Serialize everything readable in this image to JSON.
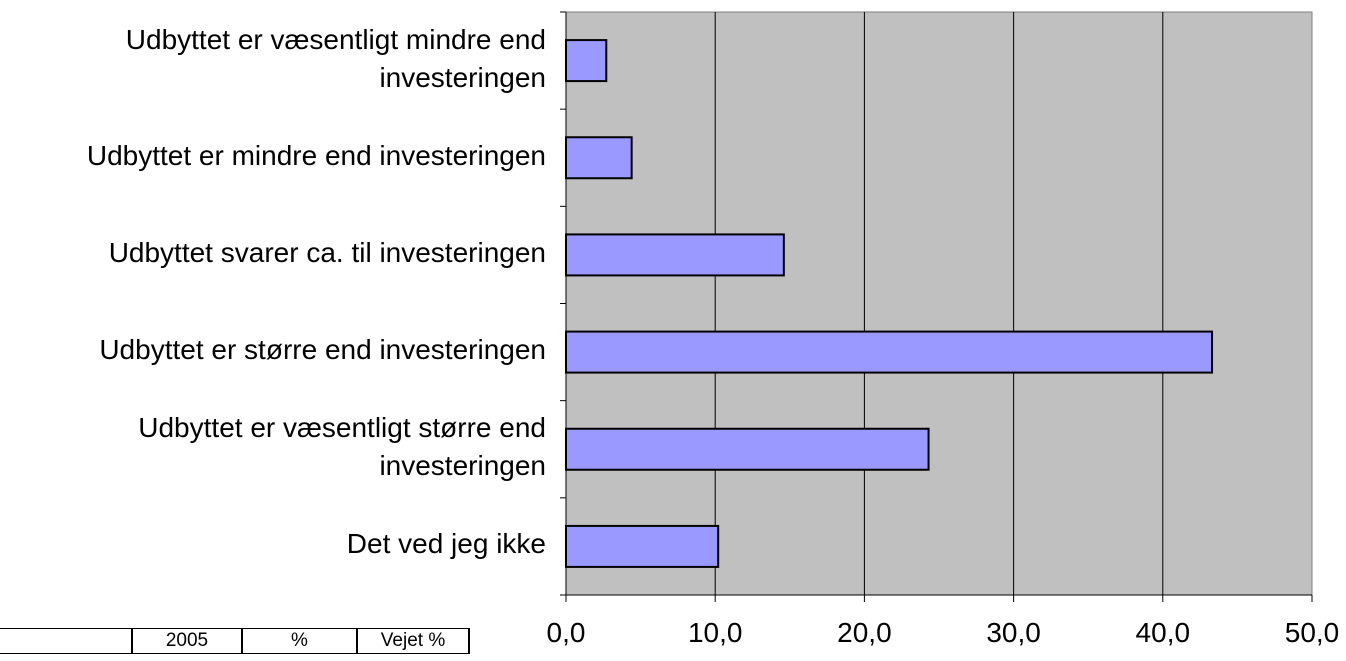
{
  "chart_data": {
    "type": "bar",
    "orientation": "horizontal",
    "categories": [
      "Udbyttet er væsentligt mindre end\ninvesteringen",
      "Udbyttet er mindre end investeringen",
      "Udbyttet svarer ca. til investeringen",
      "Udbyttet er større end investeringen",
      "Udbyttet er væsentligt større end\ninvesteringen",
      "Det ved jeg ikke"
    ],
    "values": [
      2.7,
      4.4,
      14.6,
      43.3,
      24.3,
      10.2
    ],
    "xlim": [
      0,
      50
    ],
    "x_ticks": [
      "0,0",
      "10,0",
      "20,0",
      "30,0",
      "40,0",
      "50,0"
    ],
    "title": "",
    "xlabel": "",
    "ylabel": "",
    "grid": "vertical",
    "legend": "none",
    "colors": {
      "bar_fill": "#9999ff",
      "bar_stroke": "#000000",
      "plot_background": "#c0c0c0",
      "gridline": "#000000"
    }
  },
  "table": {
    "headers": [
      "",
      "2005",
      "%",
      "Vejet %"
    ]
  }
}
